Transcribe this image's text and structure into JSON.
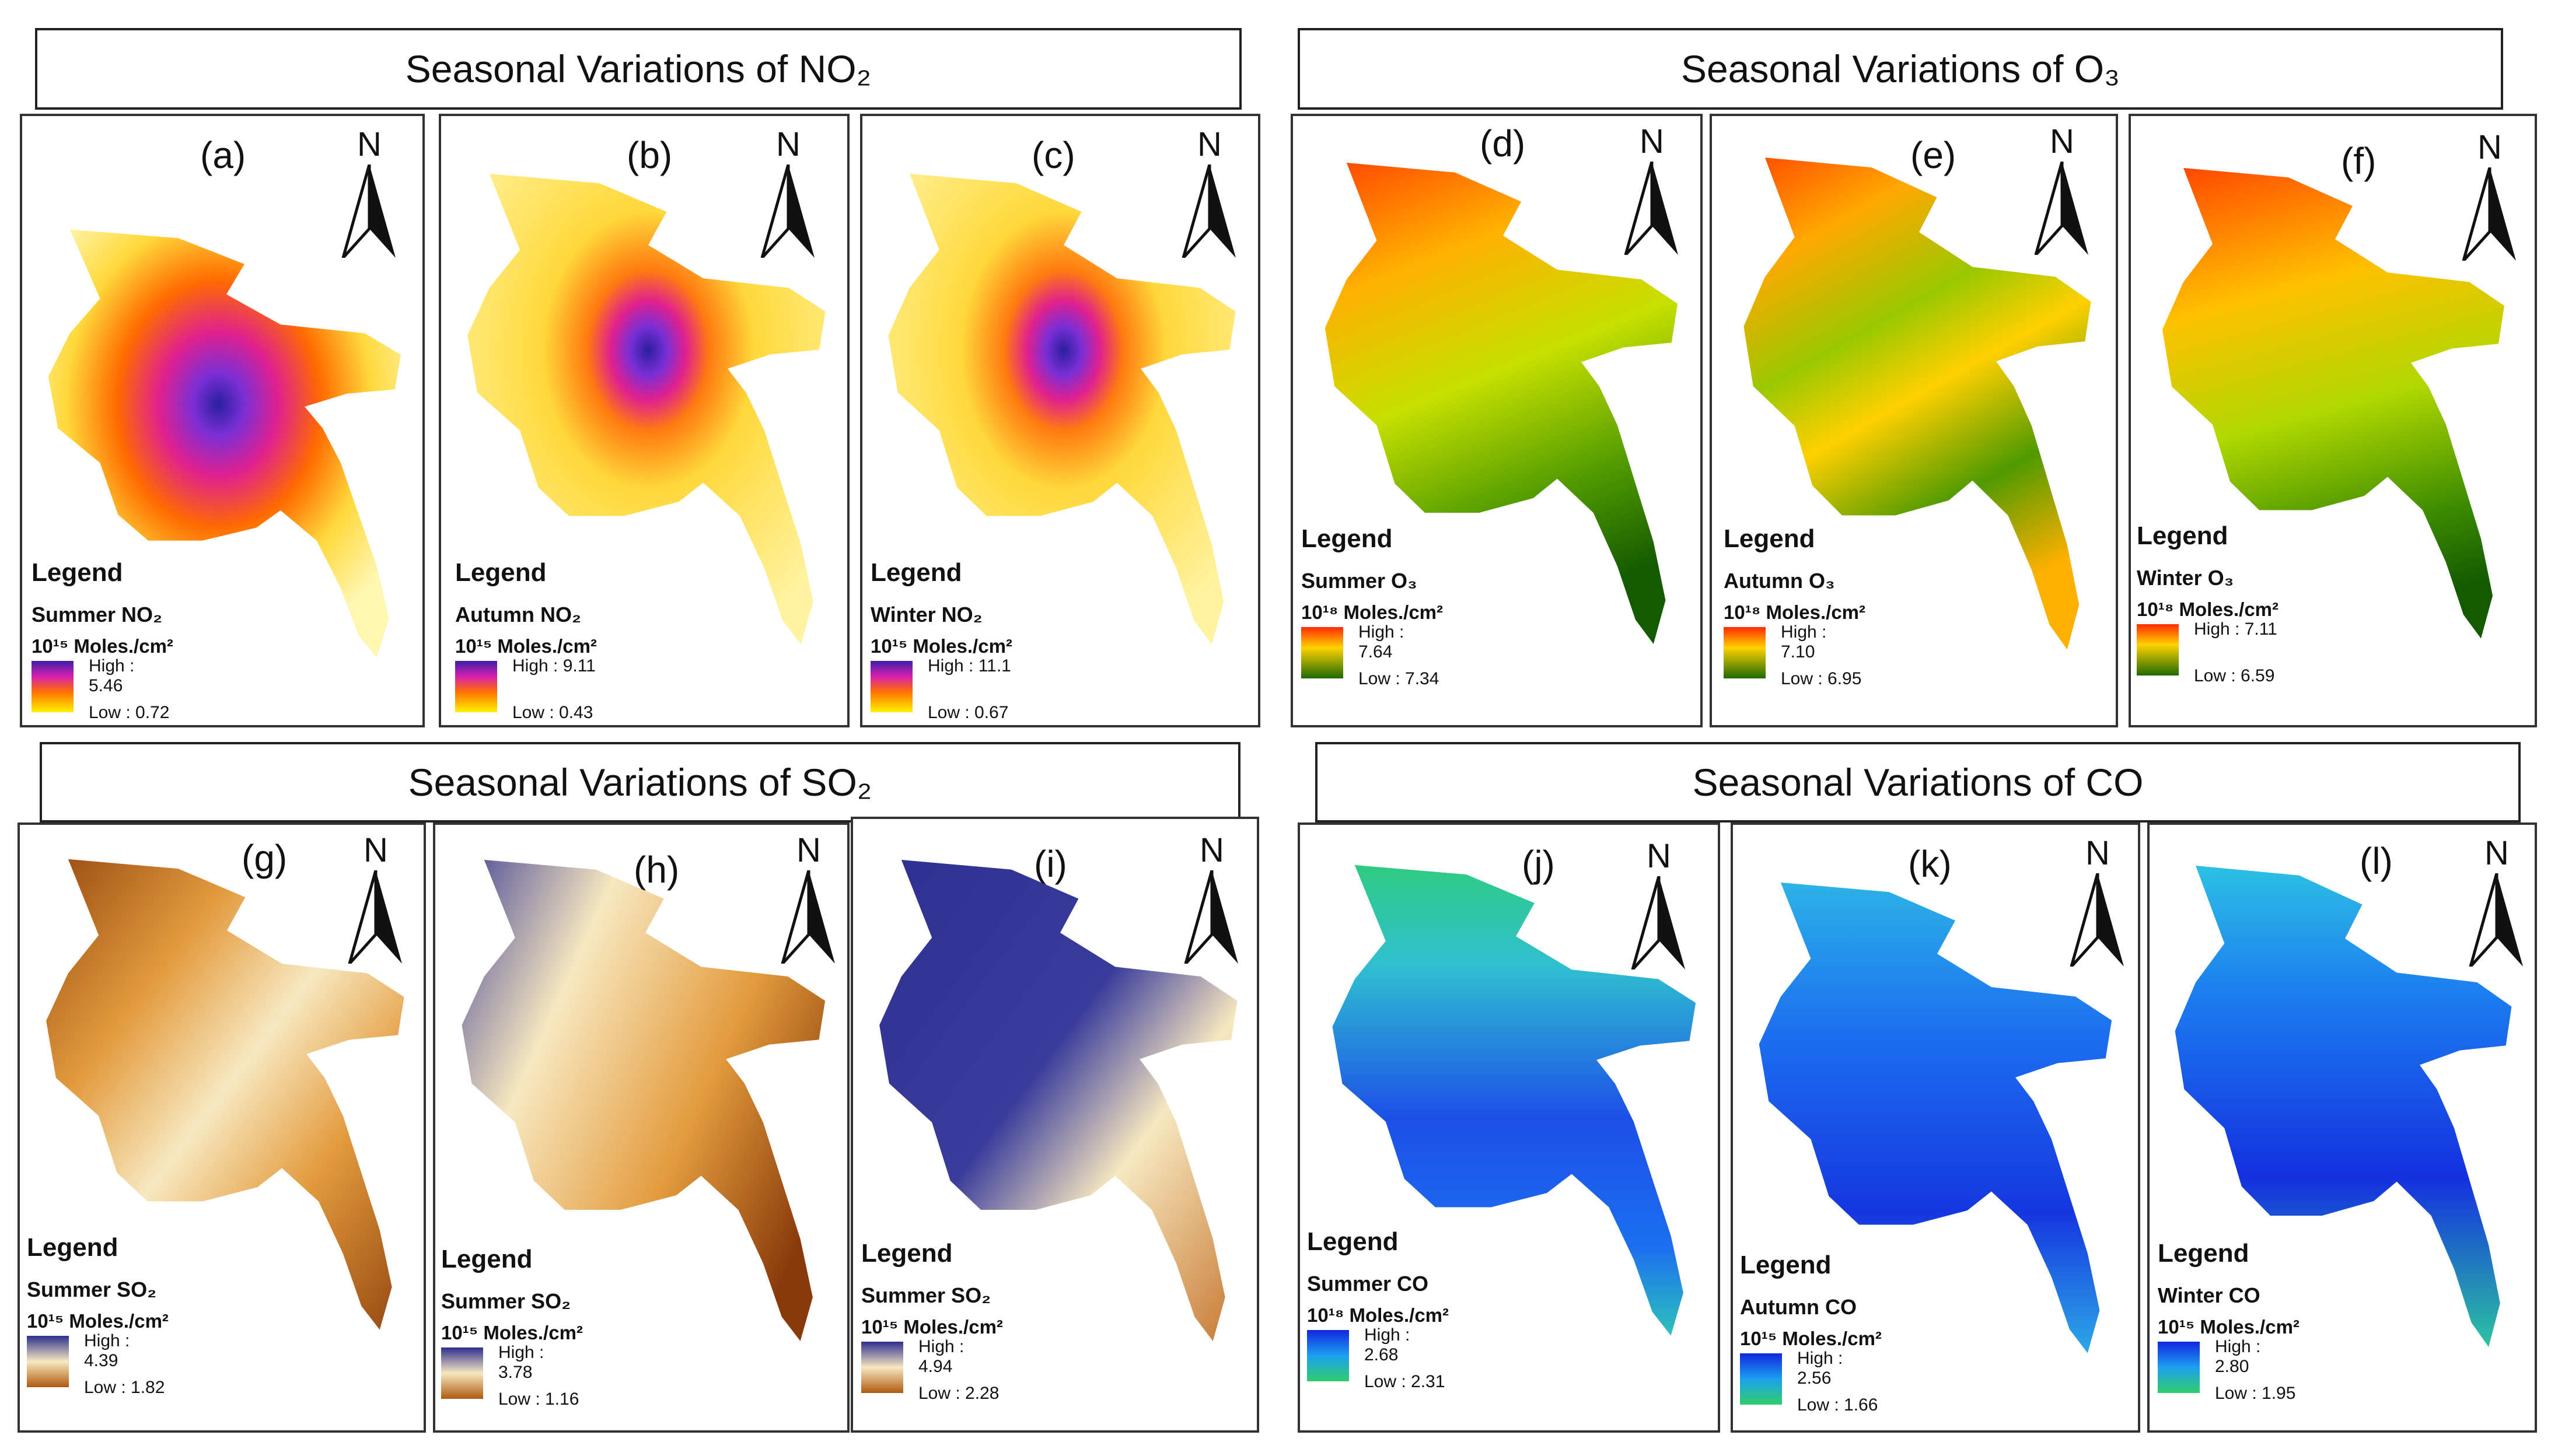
{
  "titles": {
    "no2": "Seasonal Variations of NO₂",
    "o3": "Seasonal Variations of O₃",
    "so2": "Seasonal Variations of SO₂",
    "co": "Seasonal Variations of CO"
  },
  "north_label": "N",
  "legend_title": "Legend",
  "panels": [
    {
      "label": "(a)",
      "var": "Summer NO₂",
      "unit": "10¹⁵ Moles./cm²",
      "high": "High : 5.46",
      "low": "Low : 0.72"
    },
    {
      "label": "(b)",
      "var": "Autumn NO₂",
      "unit": "10¹⁵ Moles./cm²",
      "high": "High : 9.11",
      "low": "Low : 0.43"
    },
    {
      "label": "(c)",
      "var": "Winter  NO₂",
      "unit": "10¹⁵ Moles./cm²",
      "high": "High : 11.1",
      "low": "Low : 0.67"
    },
    {
      "label": "(d)",
      "var": "Summer O₃",
      "unit": "10¹⁸ Moles./cm²",
      "high": "High : 7.64",
      "low": "Low : 7.34"
    },
    {
      "label": "(e)",
      "var": "Autumn O₃",
      "unit": "10¹⁸ Moles./cm²",
      "high": "High : 7.10",
      "low": "Low : 6.95"
    },
    {
      "label": "(f)",
      "var": "Winter O₃",
      "unit": "10¹⁸ Moles./cm²",
      "high": "High : 7.11",
      "low": "Low : 6.59"
    },
    {
      "label": "(g)",
      "var": "Summer SO₂",
      "unit": "10¹⁵ Moles./cm²",
      "high": "High : 4.39",
      "low": "Low : 1.82"
    },
    {
      "label": "(h)",
      "var": "Summer SO₂",
      "unit": "10¹⁵ Moles./cm²",
      "high": "High : 3.78",
      "low": "Low : 1.16"
    },
    {
      "label": "(i)",
      "var": "Summer SO₂",
      "unit": "10¹⁵ Moles./cm²",
      "high": "High : 4.94",
      "low": "Low : 2.28"
    },
    {
      "label": "(j)",
      "var": "Summer CO",
      "unit": "10¹⁸ Moles./cm²",
      "high": "High : 2.68",
      "low": "Low : 2.31"
    },
    {
      "label": "(k)",
      "var": "Autumn CO",
      "unit": "10¹⁵ Moles./cm²",
      "high": "High : 2.56",
      "low": "Low : 1.66"
    },
    {
      "label": "(l)",
      "var": "Winter CO",
      "unit": "10¹⁵ Moles./cm²",
      "high": "High : 2.80",
      "low": "Low : 1.95"
    }
  ],
  "colors": {
    "no2_ramp": [
      "#2a1f9e",
      "#7a2fd6",
      "#e0208f",
      "#ff6a00",
      "#ffe54a",
      "#fff6b0"
    ],
    "o3_ramp": [
      "#ff2a00",
      "#ffd200",
      "#c6e000",
      "#2f8a00",
      "#145a00"
    ],
    "so2_ramp": [
      "#2d2f8f",
      "#f7e8c0",
      "#e39a3c",
      "#8a3a0a"
    ],
    "co_ramp": [
      "#1226e0",
      "#1c7df0",
      "#2fd0e6",
      "#2fcf6a"
    ]
  }
}
